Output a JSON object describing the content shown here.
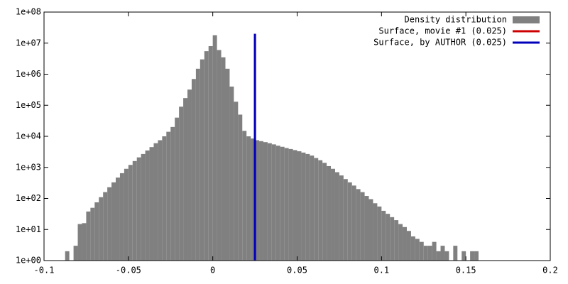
{
  "chart_data": {
    "type": "histogram",
    "bins": [
      -0.0875,
      -0.085,
      -0.0825,
      -0.08,
      -0.0775,
      -0.075,
      -0.0725,
      -0.07,
      -0.0675,
      -0.065,
      -0.0625,
      -0.06,
      -0.0575,
      -0.055,
      -0.0525,
      -0.05,
      -0.0475,
      -0.045,
      -0.0425,
      -0.04,
      -0.0375,
      -0.035,
      -0.0325,
      -0.03,
      -0.0275,
      -0.025,
      -0.0225,
      -0.02,
      -0.0175,
      -0.015,
      -0.0125,
      -0.01,
      -0.0075,
      -0.005,
      -0.0025,
      0,
      0.0025,
      0.005,
      0.0075,
      0.01,
      0.0125,
      0.015,
      0.0175,
      0.02,
      0.0225,
      0.025,
      0.0275,
      0.03,
      0.0325,
      0.035,
      0.0375,
      0.04,
      0.0425,
      0.045,
      0.0475,
      0.05,
      0.0525,
      0.055,
      0.0575,
      0.06,
      0.0625,
      0.065,
      0.0675,
      0.07,
      0.0725,
      0.075,
      0.0775,
      0.08,
      0.0825,
      0.085,
      0.0875,
      0.09,
      0.0925,
      0.095,
      0.0975,
      0.1,
      0.1025,
      0.105,
      0.1075,
      0.11,
      0.1125,
      0.115,
      0.1175,
      0.12,
      0.1225,
      0.125,
      0.1275,
      0.13,
      0.1325,
      0.135,
      0.1375,
      0.14,
      0.1425,
      0.145,
      0.1475,
      0.15,
      0.1525,
      0.155,
      0.1575
    ],
    "series": [
      {
        "name": "Density distribution",
        "color": "#808080",
        "values": [
          2,
          0,
          3,
          15,
          16,
          38,
          50,
          75,
          110,
          160,
          230,
          330,
          470,
          650,
          900,
          1200,
          1600,
          2100,
          2700,
          3500,
          4500,
          6000,
          7500,
          10000,
          14000,
          20000,
          40000,
          90000,
          170000,
          320000,
          700000,
          1500000,
          3000000,
          5500000,
          8000000,
          18000000,
          6000000,
          3500000,
          1500000,
          400000,
          130000,
          50000,
          15000,
          10000,
          8500,
          7500,
          7000,
          6500,
          6000,
          5500,
          5000,
          4600,
          4200,
          3900,
          3600,
          3300,
          3000,
          2700,
          2400,
          2000,
          1700,
          1400,
          1100,
          900,
          700,
          550,
          420,
          330,
          260,
          200,
          160,
          120,
          95,
          70,
          55,
          40,
          32,
          25,
          20,
          15,
          12,
          9,
          6,
          5,
          4,
          3,
          3,
          4,
          2,
          3,
          2,
          1,
          3,
          1,
          2,
          0,
          2,
          2
        ]
      }
    ],
    "lines": [
      {
        "name": "Surface, movie #1 (0.025)",
        "color": "#cc0000",
        "x": 0.025,
        "top": 20000000
      },
      {
        "name": "Surface, by AUTHOR (0.025)",
        "color": "#0000bb",
        "x": 0.025,
        "top": 20000000
      }
    ],
    "xlim": [
      -0.1,
      0.2
    ],
    "xticks": [
      -0.1,
      -0.05,
      0,
      0.05,
      0.1,
      0.15,
      0.2
    ],
    "ylim": [
      1,
      100000000
    ],
    "log_y": true,
    "yticks": [
      {
        "value": 1,
        "label": "1e+00"
      },
      {
        "value": 10,
        "label": "1e+01"
      },
      {
        "value": 100,
        "label": "1e+02"
      },
      {
        "value": 1000,
        "label": "1e+03"
      },
      {
        "value": 10000,
        "label": "1e+04"
      },
      {
        "value": 100000,
        "label": "1e+05"
      },
      {
        "value": 1000000,
        "label": "1e+06"
      },
      {
        "value": 10000000,
        "label": "1e+07"
      },
      {
        "value": 100000000,
        "label": "1e+08"
      }
    ],
    "legend": "top-right"
  }
}
